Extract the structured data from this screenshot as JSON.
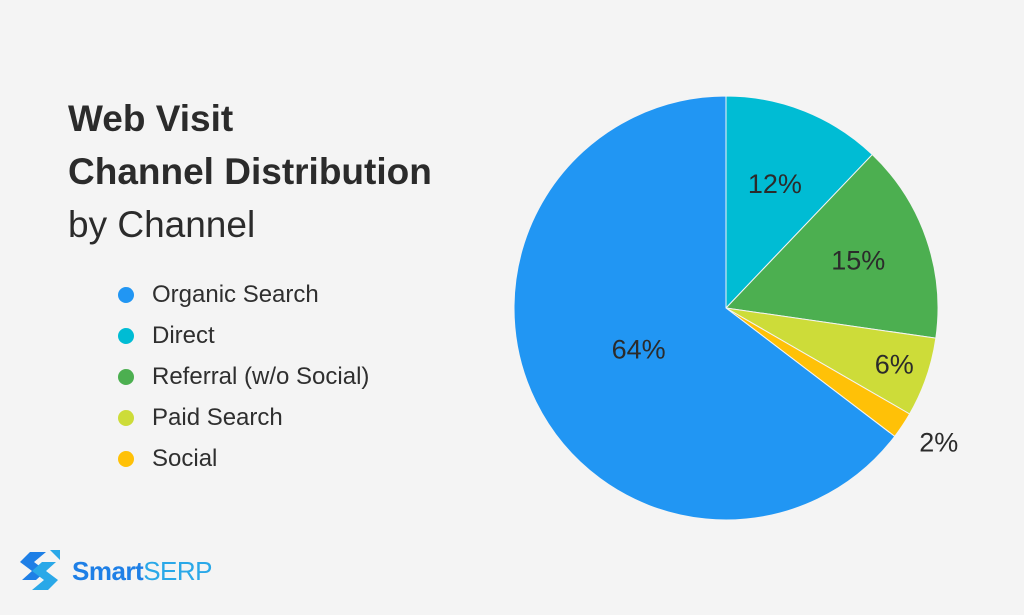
{
  "title": {
    "line1": "Web Visit",
    "line2": "Channel Distribution",
    "line3": "by Channel"
  },
  "brand": {
    "part1": "Smart",
    "part2": "SERP",
    "color1": "#1e7fe6",
    "color2": "#2aa8e8"
  },
  "chart_data": {
    "type": "pie",
    "title": "Web Visit Channel Distribution by Channel",
    "legend_position": "left",
    "slices": [
      {
        "name": "Organic Search",
        "value": 64,
        "label": "64%",
        "color": "#2196f3"
      },
      {
        "name": "Direct",
        "value": 12,
        "label": "12%",
        "color": "#00bcd4"
      },
      {
        "name": "Referral (w/o Social)",
        "value": 15,
        "label": "15%",
        "color": "#4caf50"
      },
      {
        "name": "Paid Search",
        "value": 6,
        "label": "6%",
        "color": "#cddc39"
      },
      {
        "name": "Social",
        "value": 2,
        "label": "2%",
        "color": "#ffc107"
      }
    ],
    "draw_order": [
      "Direct",
      "Referral (w/o Social)",
      "Paid Search",
      "Social",
      "Organic Search"
    ]
  }
}
